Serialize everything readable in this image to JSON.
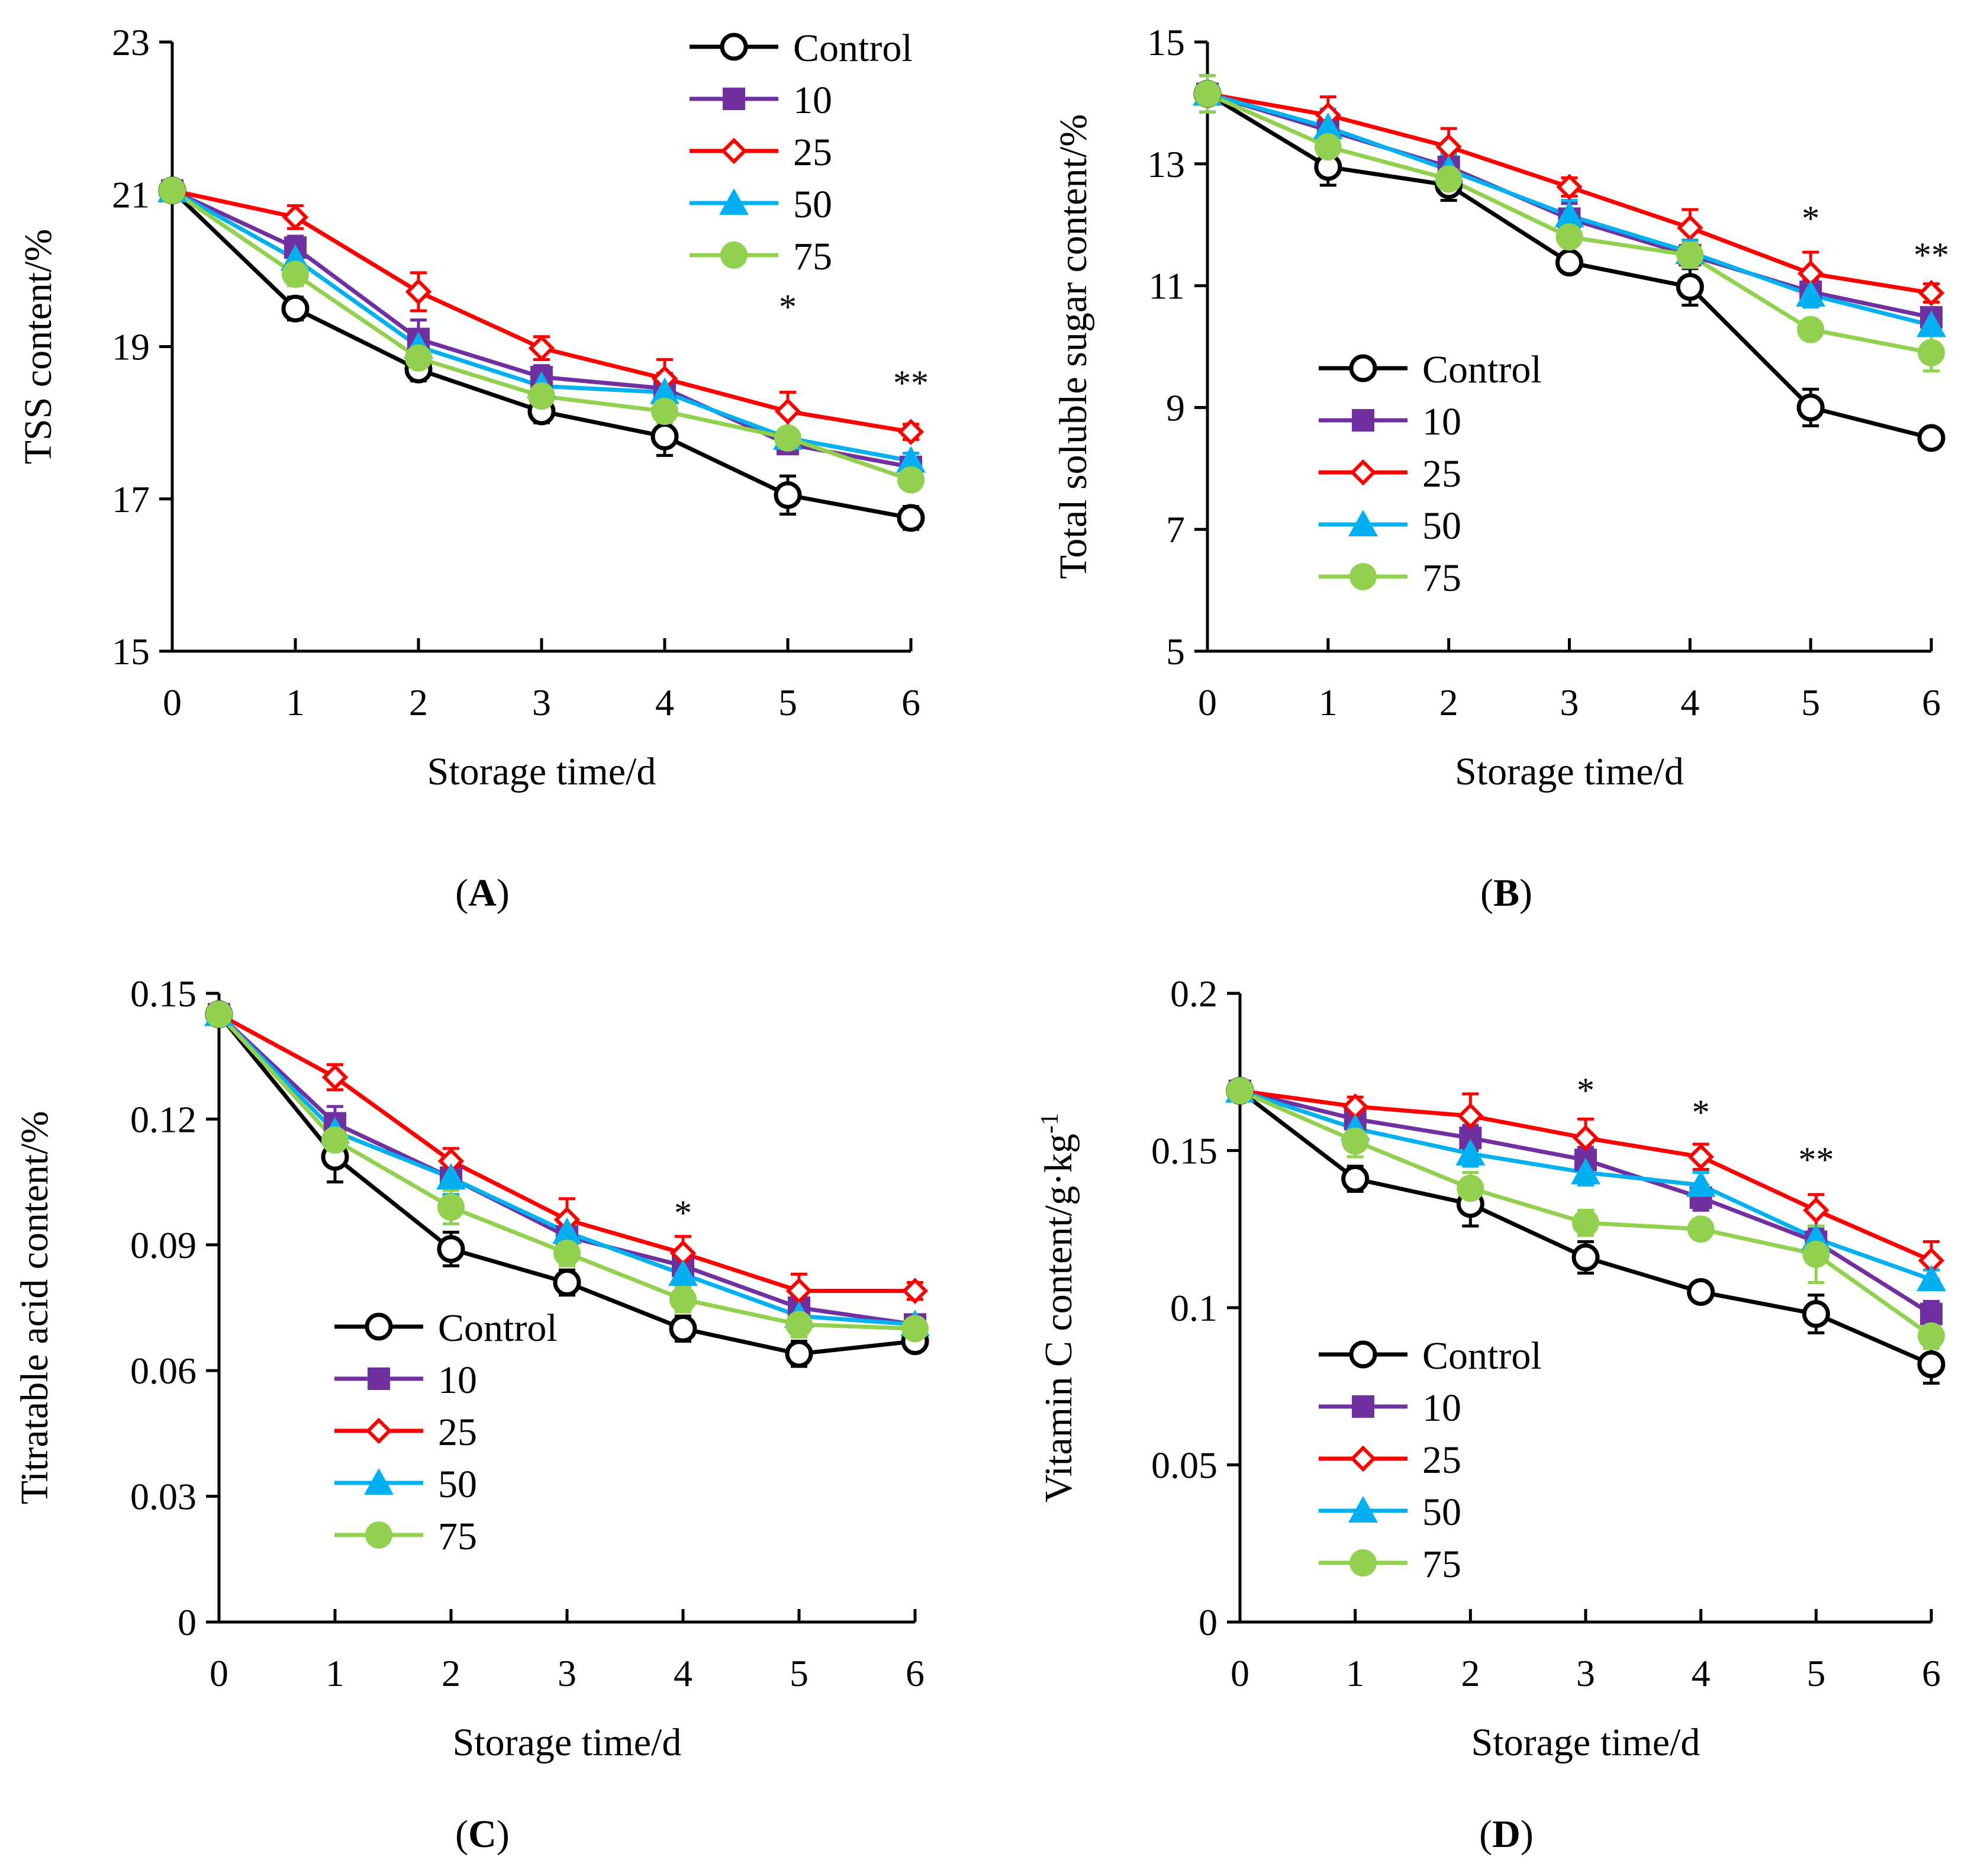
{
  "figure": {
    "panel_labels": [
      "(A)",
      "(B)",
      "(C)",
      "(D)"
    ],
    "colors": {
      "Control": "#000000",
      "10": "#7030A0",
      "25": "#FF0000",
      "50": "#00B0F0",
      "75": "#92D050"
    },
    "markers": {
      "Control": "circle-open",
      "10": "square",
      "25": "diamond-open",
      "50": "triangle",
      "75": "circle"
    }
  },
  "chart_data": [
    {
      "type": "line",
      "panel": "(A)",
      "xlabel": "Storage time/d",
      "ylabel": "TSS content/%",
      "x": [
        0,
        1,
        2,
        3,
        4,
        5,
        6
      ],
      "xlim": [
        0,
        6
      ],
      "ylim": [
        15,
        23
      ],
      "yticks": [
        15,
        17,
        19,
        21,
        23
      ],
      "ytick_labels": [
        "15",
        "17",
        "19",
        "21",
        "23"
      ],
      "legend_position": "top-right",
      "series": [
        {
          "name": "Control",
          "values": [
            21.05,
            19.5,
            18.7,
            18.15,
            17.82,
            17.05,
            16.75
          ],
          "errors": [
            0.1,
            0.15,
            0.15,
            0.15,
            0.25,
            0.25,
            0.15
          ]
        },
        {
          "name": "10",
          "values": [
            21.05,
            20.3,
            19.1,
            18.6,
            18.45,
            17.72,
            17.42
          ],
          "errors": [
            0.1,
            0.15,
            0.25,
            0.15,
            0.2,
            0.1,
            0.1
          ]
        },
        {
          "name": "25",
          "values": [
            21.05,
            20.7,
            19.72,
            18.98,
            18.58,
            18.15,
            17.88
          ],
          "errors": [
            0.1,
            0.15,
            0.25,
            0.15,
            0.25,
            0.25,
            0.1
          ]
        },
        {
          "name": "50",
          "values": [
            21.05,
            20.15,
            19.0,
            18.48,
            18.4,
            17.8,
            17.5
          ],
          "errors": [
            0.1,
            0.15,
            0.2,
            0.15,
            0.15,
            0.1,
            0.1
          ]
        },
        {
          "name": "75",
          "values": [
            21.05,
            19.95,
            18.85,
            18.35,
            18.15,
            17.8,
            17.25
          ],
          "errors": [
            0.1,
            0.15,
            0.15,
            0.15,
            0.15,
            0.1,
            0.1
          ]
        }
      ],
      "annotations": [
        {
          "x": 5,
          "text": "*",
          "y": 19.6
        },
        {
          "x": 6,
          "text": "**",
          "y": 18.6
        }
      ]
    },
    {
      "type": "line",
      "panel": "(B)",
      "xlabel": "Storage time/d",
      "ylabel": "Total soluble sugar content/%",
      "x": [
        0,
        1,
        2,
        3,
        4,
        5,
        6
      ],
      "xlim": [
        0,
        6
      ],
      "ylim": [
        5,
        15
      ],
      "yticks": [
        5,
        7,
        9,
        11,
        13,
        15
      ],
      "ytick_labels": [
        "5",
        "7",
        "9",
        "11",
        "13",
        "15"
      ],
      "legend_position": "lower-left",
      "series": [
        {
          "name": "Control",
          "values": [
            14.15,
            12.95,
            12.65,
            11.38,
            10.98,
            9.0,
            8.5
          ],
          "errors": [
            0.3,
            0.3,
            0.25,
            0.1,
            0.3,
            0.3,
            0.1
          ]
        },
        {
          "name": "10",
          "values": [
            14.15,
            13.55,
            12.95,
            12.1,
            11.5,
            10.9,
            10.48
          ],
          "errors": [
            0.3,
            0.3,
            0.25,
            0.25,
            0.2,
            0.2,
            0.1
          ]
        },
        {
          "name": "25",
          "values": [
            14.15,
            13.8,
            13.28,
            12.62,
            11.95,
            11.2,
            10.88
          ],
          "errors": [
            0.3,
            0.3,
            0.3,
            0.15,
            0.3,
            0.35,
            0.15
          ]
        },
        {
          "name": "50",
          "values": [
            14.15,
            13.6,
            12.9,
            12.15,
            11.55,
            10.85,
            10.35
          ],
          "errors": [
            0.3,
            0.3,
            0.25,
            0.25,
            0.2,
            0.2,
            0.15
          ]
        },
        {
          "name": "75",
          "values": [
            14.15,
            13.28,
            12.75,
            11.8,
            11.5,
            10.28,
            9.9
          ],
          "errors": [
            0.3,
            0.3,
            0.25,
            0.25,
            0.2,
            0.1,
            0.3
          ]
        }
      ],
      "annotations": [
        {
          "x": 5,
          "text": "*",
          "y": 12.2
        },
        {
          "x": 6,
          "text": "**",
          "y": 11.6
        }
      ]
    },
    {
      "type": "line",
      "panel": "(C)",
      "xlabel": "Storage time/d",
      "ylabel": "Titratable acid content/%",
      "x": [
        0,
        1,
        2,
        3,
        4,
        5,
        6
      ],
      "xlim": [
        0,
        6
      ],
      "ylim": [
        0,
        0.15
      ],
      "yticks": [
        0,
        0.03,
        0.06,
        0.09,
        0.12,
        0.15
      ],
      "ytick_labels": [
        "0",
        "0.03",
        "0.06",
        "0.09",
        "0.12",
        "0.15"
      ],
      "legend_position": "lower-left",
      "series": [
        {
          "name": "Control",
          "values": [
            0.145,
            0.111,
            0.089,
            0.081,
            0.07,
            0.064,
            0.067
          ],
          "errors": [
            0.002,
            0.006,
            0.004,
            0.003,
            0.003,
            0.003,
            0.002
          ]
        },
        {
          "name": "10",
          "values": [
            0.145,
            0.119,
            0.106,
            0.092,
            0.085,
            0.075,
            0.071
          ],
          "errors": [
            0.002,
            0.004,
            0.004,
            0.003,
            0.003,
            0.003,
            0.002
          ]
        },
        {
          "name": "25",
          "values": [
            0.145,
            0.13,
            0.11,
            0.096,
            0.088,
            0.079,
            0.079
          ],
          "errors": [
            0.002,
            0.003,
            0.003,
            0.005,
            0.004,
            0.004,
            0.002
          ]
        },
        {
          "name": "50",
          "values": [
            0.145,
            0.117,
            0.106,
            0.093,
            0.083,
            0.073,
            0.071
          ],
          "errors": [
            0.002,
            0.004,
            0.004,
            0.003,
            0.003,
            0.003,
            0.002
          ]
        },
        {
          "name": "75",
          "values": [
            0.145,
            0.115,
            0.099,
            0.088,
            0.077,
            0.071,
            0.07
          ],
          "errors": [
            0.002,
            0.004,
            0.004,
            0.003,
            0.003,
            0.003,
            0.002
          ]
        }
      ],
      "annotations": [
        {
          "x": 4,
          "text": "*",
          "y": 0.099
        }
      ]
    },
    {
      "type": "line",
      "panel": "(D)",
      "xlabel": "Storage time/d",
      "ylabel": "Vitamin C content/g·kg",
      "ylabel_superscript": "-1",
      "x": [
        0,
        1,
        2,
        3,
        4,
        5,
        6
      ],
      "xlim": [
        0,
        6
      ],
      "ylim": [
        0,
        0.2
      ],
      "yticks": [
        0,
        0.05,
        0.1,
        0.15,
        0.2
      ],
      "ytick_labels": [
        "0",
        "0.05",
        "0.1",
        "0.15",
        "0.2"
      ],
      "legend_position": "lower-left",
      "series": [
        {
          "name": "Control",
          "values": [
            0.169,
            0.141,
            0.133,
            0.116,
            0.105,
            0.098,
            0.082
          ],
          "errors": [
            0.002,
            0.004,
            0.007,
            0.005,
            0.003,
            0.006,
            0.006
          ]
        },
        {
          "name": "10",
          "values": [
            0.169,
            0.16,
            0.154,
            0.147,
            0.135,
            0.121,
            0.098
          ],
          "errors": [
            0.002,
            0.004,
            0.004,
            0.004,
            0.004,
            0.004,
            0.004
          ]
        },
        {
          "name": "25",
          "values": [
            0.169,
            0.164,
            0.161,
            0.154,
            0.148,
            0.131,
            0.115
          ],
          "errors": [
            0.002,
            0.003,
            0.007,
            0.006,
            0.004,
            0.005,
            0.006
          ]
        },
        {
          "name": "50",
          "values": [
            0.169,
            0.157,
            0.149,
            0.143,
            0.139,
            0.122,
            0.109
          ],
          "errors": [
            0.002,
            0.004,
            0.004,
            0.004,
            0.004,
            0.004,
            0.003
          ]
        },
        {
          "name": "75",
          "values": [
            0.169,
            0.153,
            0.138,
            0.127,
            0.125,
            0.117,
            0.091
          ],
          "errors": [
            0.002,
            0.005,
            0.005,
            0.004,
            0.002,
            0.009,
            0.004
          ]
        }
      ],
      "annotations": [
        {
          "x": 3,
          "text": "*",
          "y": 0.171
        },
        {
          "x": 4,
          "text": "*",
          "y": 0.164
        },
        {
          "x": 5,
          "text": "**",
          "y": 0.149
        }
      ]
    }
  ]
}
